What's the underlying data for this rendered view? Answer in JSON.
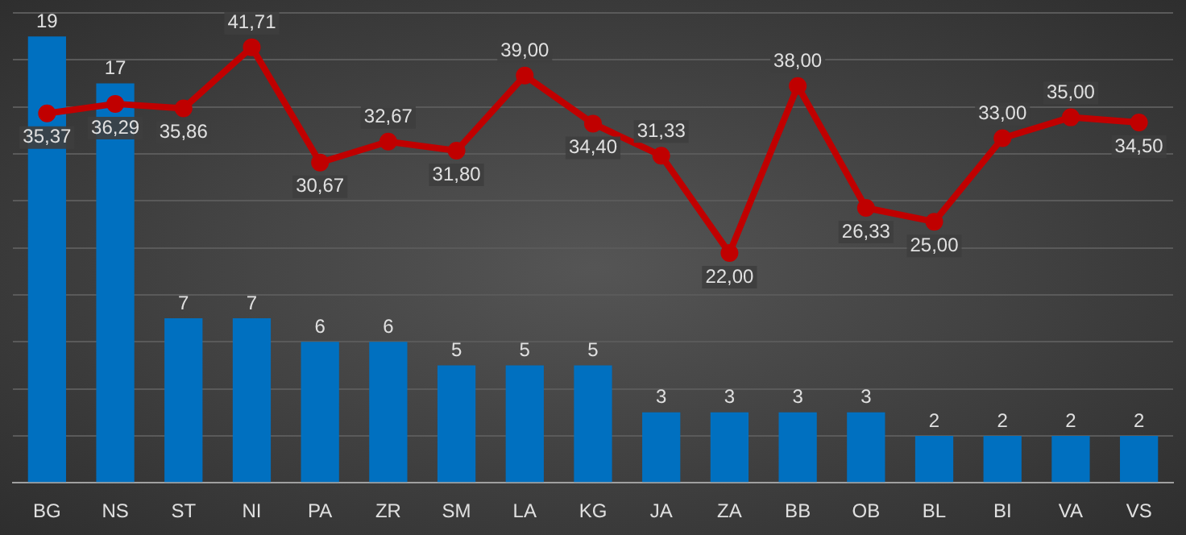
{
  "chart_data": {
    "type": "bar",
    "categories": [
      "BG",
      "NS",
      "ST",
      "NI",
      "PA",
      "ZR",
      "SM",
      "LA",
      "KG",
      "JA",
      "ZA",
      "BB",
      "OB",
      "BL",
      "BI",
      "VA",
      "VS"
    ],
    "series": [
      {
        "color": "#0070c0",
        "values": [
          19,
          17,
          7,
          7,
          6,
          6,
          5,
          5,
          5,
          3,
          3,
          3,
          3,
          2,
          2,
          2,
          2
        ],
        "value_labels": [
          "19",
          "17",
          "7",
          "7",
          "6",
          "6",
          "5",
          "5",
          "5",
          "3",
          "3",
          "3",
          "3",
          "2",
          "2",
          "2",
          "2"
        ]
      },
      {
        "type": "line",
        "axis": "y2",
        "color": "#c00000",
        "values": [
          35.37,
          36.29,
          35.86,
          41.71,
          30.67,
          32.67,
          31.8,
          39.0,
          34.4,
          31.33,
          22.0,
          38.0,
          26.33,
          25.0,
          33.0,
          35.0,
          34.5
        ],
        "value_labels": [
          "35,37",
          "36,29",
          "35,86",
          "41,71",
          "30,67",
          "32,67",
          "31,80",
          "39,00",
          "34,40",
          "31,33",
          "22,00",
          "38,00",
          "26,33",
          "25,00",
          "33,00",
          "35,00",
          "34,50"
        ]
      }
    ],
    "ylim": [
      0,
      20
    ],
    "yticks": [
      {
        "value": 0,
        "label": null
      },
      {
        "value": 2,
        "label": null
      },
      {
        "value": 4,
        "label": null
      },
      {
        "value": 6,
        "label": null
      },
      {
        "value": 8,
        "label": null
      },
      {
        "value": 10,
        "label": null
      },
      {
        "value": 12,
        "label": null
      },
      {
        "value": 14,
        "label": null
      },
      {
        "value": 16,
        "label": null
      },
      {
        "value": 18,
        "label": null
      },
      {
        "value": 20,
        "label": null
      }
    ],
    "y2lim": [
      0,
      45
    ],
    "grid": "y",
    "legend": false,
    "marker": "circle",
    "line_style": "solid",
    "tick_labels": "x"
  }
}
